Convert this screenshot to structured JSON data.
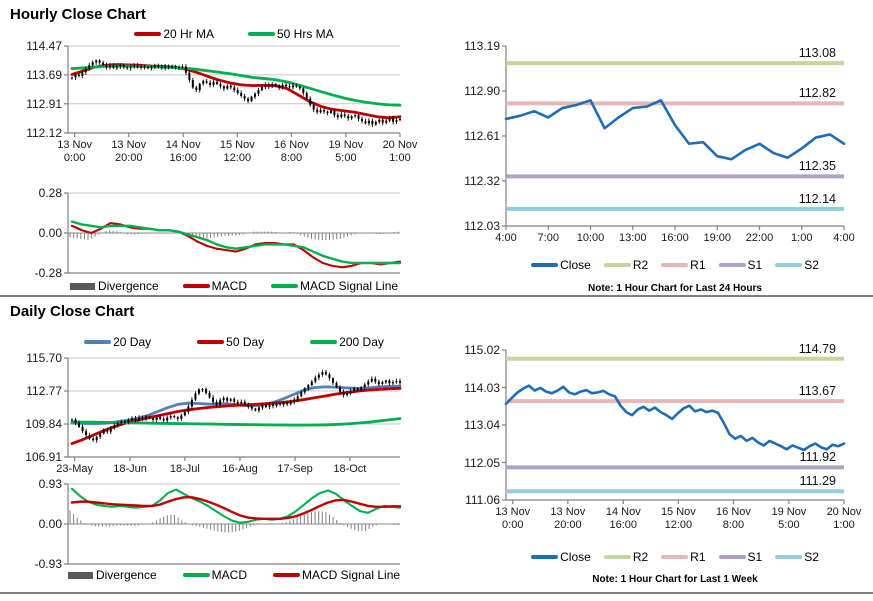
{
  "sections": {
    "hourly": {
      "title": "Hourly Close Chart"
    },
    "daily": {
      "title": "Daily Close Chart"
    }
  },
  "colors": {
    "axis": "#808080",
    "grid": "#c6c6c6",
    "candle": "#000000",
    "divergence_bar": "#7f7f7f",
    "divergence_legend": "#595959",
    "close_blue": "#1F6CB4",
    "ma20d_blue": "#4F81BD",
    "red": "#C00000",
    "green": "#00B050",
    "r2": "#C3D69B",
    "r1": "#E5B8B7",
    "s1": "#B1A0C7",
    "s2": "#92CDDC"
  },
  "chart_data": [
    {
      "id": "hourly-price",
      "type": "candlestick",
      "title": "Hourly Close Chart",
      "ylim": [
        112.12,
        114.47
      ],
      "yticks": [
        "114.47",
        "113.69",
        "112.91",
        "112.12"
      ],
      "xticks": [
        "13 Nov|0:00",
        "13 Nov|20:00",
        "14 Nov|16:00",
        "15 Nov|12:00",
        "16 Nov|8:00",
        "19 Nov|5:00",
        "20 Nov|1:00"
      ],
      "wick": 0.07,
      "closes": [
        113.62,
        113.7,
        113.66,
        113.76,
        113.85,
        113.95,
        114.03,
        114.08,
        114.02,
        113.96,
        113.9,
        113.94,
        113.88,
        113.92,
        113.96,
        113.9,
        113.87,
        113.91,
        113.94,
        113.89,
        113.92,
        113.9,
        113.87,
        113.91,
        113.93,
        113.9,
        113.88,
        113.92,
        113.89,
        113.93,
        113.9,
        113.88,
        113.91,
        113.75,
        113.55,
        113.35,
        113.28,
        113.45,
        113.52,
        113.48,
        113.42,
        113.5,
        113.44,
        113.38,
        113.32,
        113.4,
        113.35,
        113.28,
        113.2,
        113.12,
        113.05,
        112.98,
        113.1,
        113.18,
        113.28,
        113.36,
        113.42,
        113.38,
        113.44,
        113.4,
        113.35,
        113.42,
        113.38,
        113.36,
        113.4,
        113.37,
        113.33,
        113.2,
        113.05,
        112.88,
        112.75,
        112.68,
        112.74,
        112.7,
        112.66,
        112.72,
        112.6,
        112.55,
        112.62,
        112.58,
        112.52,
        112.57,
        112.6,
        112.5,
        112.44,
        112.38,
        112.45,
        112.35,
        112.42,
        112.48,
        112.4,
        112.45,
        112.52,
        112.42,
        112.47,
        112.5
      ],
      "series": [
        {
          "name": "20 Hr MA",
          "color": "#C00000",
          "values": [
            113.7,
            113.8,
            113.9,
            113.95,
            113.97,
            113.96,
            113.95,
            113.93,
            113.92,
            113.9,
            113.85,
            113.76,
            113.65,
            113.55,
            113.47,
            113.42,
            113.4,
            113.41,
            113.4,
            113.32,
            113.15,
            112.97,
            112.84,
            112.76,
            112.72,
            112.68,
            112.62,
            112.56,
            112.53,
            112.56
          ]
        },
        {
          "name": "50 Hrs MA",
          "color": "#00B050",
          "values": [
            113.86,
            113.88,
            113.9,
            113.92,
            113.93,
            113.93,
            113.92,
            113.91,
            113.9,
            113.89,
            113.87,
            113.84,
            113.8,
            113.76,
            113.72,
            113.67,
            113.62,
            113.59,
            113.56,
            113.5,
            113.42,
            113.33,
            113.24,
            113.15,
            113.07,
            113.0,
            112.95,
            112.91,
            112.88,
            112.87
          ]
        }
      ],
      "legend": [
        {
          "label": "20 Hr MA",
          "color": "#C00000",
          "swatch": "line"
        },
        {
          "label": "50 Hrs MA",
          "color": "#00B050",
          "swatch": "line"
        }
      ]
    },
    {
      "id": "hourly-macd",
      "type": "macd",
      "ylim": [
        -0.28,
        0.28
      ],
      "yticks": [
        "0.28",
        "0.00",
        "-0.28"
      ],
      "macd": {
        "name": "MACD",
        "color": "#C00000",
        "values": [
          0.05,
          0.02,
          0.0,
          0.03,
          0.07,
          0.06,
          0.04,
          0.03,
          0.03,
          0.02,
          0.02,
          0.01,
          -0.02,
          -0.06,
          -0.09,
          -0.11,
          -0.12,
          -0.13,
          -0.11,
          -0.08,
          -0.07,
          -0.07,
          -0.08,
          -0.08,
          -0.12,
          -0.17,
          -0.21,
          -0.23,
          -0.24,
          -0.23,
          -0.21,
          -0.21,
          -0.22,
          -0.21,
          -0.2
        ]
      },
      "signal": {
        "name": "MACD Signal Line",
        "color": "#00B050",
        "values": [
          0.08,
          0.06,
          0.05,
          0.04,
          0.05,
          0.05,
          0.05,
          0.04,
          0.03,
          0.02,
          0.02,
          0.01,
          -0.01,
          -0.03,
          -0.05,
          -0.08,
          -0.1,
          -0.11,
          -0.1,
          -0.09,
          -0.08,
          -0.08,
          -0.08,
          -0.09,
          -0.1,
          -0.13,
          -0.16,
          -0.18,
          -0.2,
          -0.21,
          -0.21,
          -0.21,
          -0.21,
          -0.21,
          -0.21
        ]
      },
      "legend": [
        {
          "label": "Divergence",
          "color": "#595959",
          "swatch": "bar"
        },
        {
          "label": "MACD",
          "color": "#C00000",
          "swatch": "line"
        },
        {
          "label": "MACD Signal Line",
          "color": "#00B050",
          "swatch": "line"
        }
      ]
    },
    {
      "id": "hourly-intraday",
      "type": "line+levels",
      "note": "Note: 1 Hour Chart for Last 24 Hours",
      "ylim": [
        112.03,
        113.19
      ],
      "yticks": [
        "113.19",
        "112.90",
        "112.61",
        "112.32",
        "112.03"
      ],
      "xticks": [
        "4:00",
        "7:00",
        "10:00",
        "13:00",
        "16:00",
        "19:00",
        "22:00",
        "1:00",
        "4:00"
      ],
      "close": {
        "name": "Close",
        "color": "#1F6CB4",
        "values": [
          112.72,
          112.74,
          112.77,
          112.73,
          112.79,
          112.81,
          112.84,
          112.66,
          112.73,
          112.79,
          112.8,
          112.84,
          112.68,
          112.56,
          112.57,
          112.48,
          112.46,
          112.52,
          112.56,
          112.5,
          112.47,
          112.53,
          112.6,
          112.62,
          112.56
        ]
      },
      "levels": [
        {
          "name": "R2",
          "value": 113.08,
          "label": "113.08",
          "color": "#C3D69B"
        },
        {
          "name": "R1",
          "value": 112.82,
          "label": "112.82",
          "color": "#E5B8B7"
        },
        {
          "name": "S1",
          "value": 112.35,
          "label": "112.35",
          "color": "#B1A0C7"
        },
        {
          "name": "S2",
          "value": 112.14,
          "label": "112.14",
          "color": "#92CDDC"
        }
      ],
      "legend": [
        {
          "label": "Close",
          "color": "#1F6CB4",
          "swatch": "line"
        },
        {
          "label": "R2",
          "color": "#C3D69B",
          "swatch": "line"
        },
        {
          "label": "R1",
          "color": "#E5B8B7",
          "swatch": "line"
        },
        {
          "label": "S1",
          "color": "#B1A0C7",
          "swatch": "line"
        },
        {
          "label": "S2",
          "color": "#92CDDC",
          "swatch": "line"
        }
      ]
    },
    {
      "id": "daily-price",
      "type": "candlestick",
      "title": "Daily Close Chart",
      "ylim": [
        106.91,
        115.7
      ],
      "yticks": [
        "115.70",
        "112.77",
        "109.84",
        "106.91"
      ],
      "xticks": [
        "23-May",
        "18-Jun",
        "18-Jul",
        "16-Aug",
        "17-Sep",
        "18-Oct"
      ],
      "wick": 0.22,
      "closes": [
        110.25,
        109.95,
        109.6,
        109.2,
        108.85,
        108.55,
        108.4,
        108.7,
        109.0,
        109.3,
        109.15,
        109.45,
        109.7,
        109.9,
        110.1,
        109.95,
        110.2,
        110.35,
        110.15,
        110.4,
        110.3,
        110.5,
        110.35,
        110.2,
        110.45,
        110.3,
        110.15,
        110.4,
        110.55,
        110.45,
        110.3,
        110.6,
        110.9,
        111.4,
        112.0,
        112.55,
        112.9,
        112.95,
        112.6,
        112.2,
        111.8,
        111.55,
        111.95,
        112.15,
        111.9,
        112.05,
        111.8,
        111.65,
        111.8,
        111.55,
        111.4,
        111.2,
        111.05,
        111.3,
        111.5,
        111.35,
        111.6,
        111.45,
        111.7,
        111.55,
        111.75,
        111.6,
        111.8,
        112.0,
        112.3,
        112.65,
        113.0,
        113.3,
        113.6,
        113.95,
        114.2,
        114.45,
        114.25,
        113.9,
        113.5,
        113.1,
        112.7,
        112.4,
        112.55,
        112.8,
        113.0,
        112.85,
        113.1,
        113.35,
        113.6,
        113.85,
        113.6,
        113.4,
        113.55,
        113.7,
        113.45,
        113.55,
        113.65,
        113.5
      ],
      "series": [
        {
          "name": "20 Day",
          "color": "#4F81BD",
          "values": [
            109.92,
            109.9,
            109.86,
            109.9,
            110.0,
            110.14,
            110.3,
            110.55,
            110.9,
            111.28,
            111.58,
            111.7,
            111.66,
            111.6,
            111.64,
            111.6,
            111.5,
            111.44,
            111.54,
            111.74,
            112.08,
            112.48,
            112.88,
            113.08,
            113.14,
            113.1,
            113.04,
            113.0,
            113.05,
            113.14,
            113.18,
            113.2
          ]
        },
        {
          "name": "50 Day",
          "color": "#C00000",
          "values": [
            108.1,
            108.45,
            108.85,
            109.25,
            109.6,
            109.9,
            110.15,
            110.35,
            110.55,
            110.75,
            110.95,
            111.1,
            111.22,
            111.32,
            111.4,
            111.47,
            111.52,
            111.57,
            111.62,
            111.68,
            111.76,
            111.88,
            112.02,
            112.18,
            112.34,
            112.5,
            112.64,
            112.76,
            112.85,
            112.92,
            112.97,
            113.0
          ]
        },
        {
          "name": "200 Day",
          "color": "#00B050",
          "values": [
            110.02,
            110.0,
            110.0,
            109.98,
            109.96,
            109.95,
            109.94,
            109.92,
            109.9,
            109.89,
            109.88,
            109.86,
            109.85,
            109.84,
            109.82,
            109.8,
            109.79,
            109.78,
            109.77,
            109.76,
            109.75,
            109.74,
            109.74,
            109.75,
            109.77,
            109.8,
            109.85,
            109.92,
            110.0,
            110.1,
            110.22,
            110.32
          ]
        }
      ],
      "legend": [
        {
          "label": "20 Day",
          "color": "#4F81BD",
          "swatch": "line"
        },
        {
          "label": "50 Day",
          "color": "#C00000",
          "swatch": "line"
        },
        {
          "label": "200 Day",
          "color": "#00B050",
          "swatch": "line"
        }
      ]
    },
    {
      "id": "daily-macd",
      "type": "macd",
      "ylim": [
        -0.93,
        0.93
      ],
      "yticks": [
        "0.93",
        "0.00",
        "-0.93"
      ],
      "macd": {
        "name": "MACD",
        "color": "#00B050",
        "values": [
          0.82,
          0.65,
          0.52,
          0.45,
          0.42,
          0.4,
          0.42,
          0.4,
          0.38,
          0.4,
          0.42,
          0.55,
          0.72,
          0.8,
          0.7,
          0.6,
          0.52,
          0.42,
          0.3,
          0.18,
          0.08,
          0.03,
          0.05,
          0.1,
          0.12,
          0.1,
          0.12,
          0.18,
          0.3,
          0.45,
          0.6,
          0.72,
          0.78,
          0.7,
          0.55,
          0.42,
          0.3,
          0.26,
          0.35,
          0.42,
          0.4,
          0.38
        ]
      },
      "signal": {
        "name": "MACD Signal Line",
        "color": "#C00000",
        "values": [
          0.5,
          0.52,
          0.52,
          0.5,
          0.48,
          0.46,
          0.45,
          0.44,
          0.43,
          0.42,
          0.42,
          0.45,
          0.52,
          0.58,
          0.62,
          0.62,
          0.58,
          0.52,
          0.45,
          0.37,
          0.28,
          0.2,
          0.15,
          0.13,
          0.12,
          0.12,
          0.12,
          0.14,
          0.18,
          0.25,
          0.33,
          0.42,
          0.5,
          0.55,
          0.56,
          0.52,
          0.47,
          0.42,
          0.4,
          0.4,
          0.41,
          0.41
        ]
      },
      "legend": [
        {
          "label": "Divergence",
          "color": "#595959",
          "swatch": "bar"
        },
        {
          "label": "MACD",
          "color": "#00B050",
          "swatch": "line"
        },
        {
          "label": "MACD Signal Line",
          "color": "#C00000",
          "swatch": "line"
        }
      ]
    },
    {
      "id": "daily-weekly",
      "type": "line+levels",
      "note": "Note: 1 Hour Chart for Last 1 Week",
      "ylim": [
        111.06,
        115.02
      ],
      "yticks": [
        "115.02",
        "114.03",
        "113.04",
        "112.05",
        "111.06"
      ],
      "xticks": [
        "13 Nov|0:00",
        "13 Nov|20:00",
        "14 Nov|16:00",
        "15 Nov|12:00",
        "16 Nov|8:00",
        "19 Nov|5:00",
        "20 Nov|1:00"
      ],
      "close": {
        "name": "Close",
        "color": "#1F6CB4",
        "values": [
          113.6,
          113.75,
          113.9,
          114.0,
          114.08,
          113.95,
          114.02,
          113.92,
          113.88,
          113.95,
          114.05,
          113.9,
          113.85,
          113.92,
          113.96,
          113.88,
          113.9,
          113.94,
          113.85,
          113.8,
          113.55,
          113.38,
          113.3,
          113.45,
          113.52,
          113.42,
          113.5,
          113.38,
          113.3,
          113.2,
          113.35,
          113.48,
          113.55,
          113.4,
          113.45,
          113.38,
          113.42,
          113.36,
          113.1,
          112.8,
          112.68,
          112.75,
          112.62,
          112.7,
          112.58,
          112.5,
          112.62,
          112.55,
          112.48,
          112.4,
          112.5,
          112.44,
          112.38,
          112.48,
          112.55,
          112.45,
          112.4,
          112.52,
          112.48,
          112.55
        ]
      },
      "levels": [
        {
          "name": "R2",
          "value": 114.79,
          "label": "114.79",
          "color": "#C3D69B"
        },
        {
          "name": "R1",
          "value": 113.67,
          "label": "113.67",
          "color": "#E5B8B7"
        },
        {
          "name": "S1",
          "value": 111.92,
          "label": "111.92",
          "color": "#B1A0C7"
        },
        {
          "name": "S2",
          "value": 111.29,
          "label": "111.29",
          "color": "#92CDDC"
        }
      ],
      "legend": [
        {
          "label": "Close",
          "color": "#1F6CB4",
          "swatch": "line"
        },
        {
          "label": "R2",
          "color": "#C3D69B",
          "swatch": "line"
        },
        {
          "label": "R1",
          "color": "#E5B8B7",
          "swatch": "line"
        },
        {
          "label": "S1",
          "color": "#B1A0C7",
          "swatch": "line"
        },
        {
          "label": "S2",
          "color": "#92CDDC",
          "swatch": "line"
        }
      ]
    }
  ]
}
